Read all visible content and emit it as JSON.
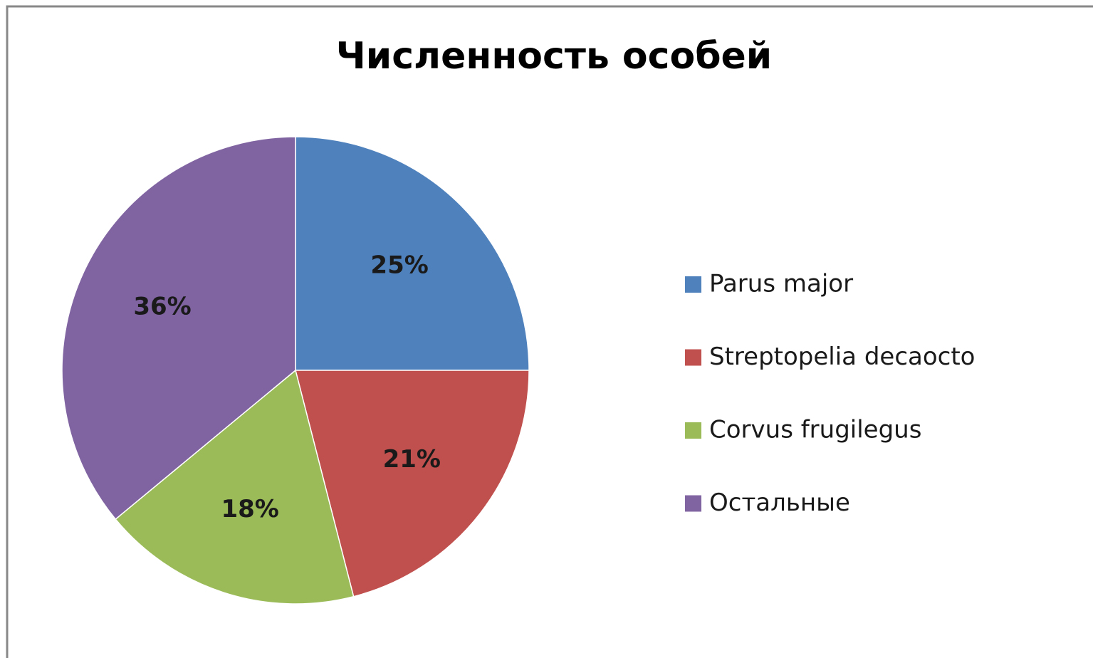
{
  "chart_data": {
    "type": "pie",
    "title": "Численность особей",
    "categories": [
      "Parus major",
      "Streptopelia decaocto",
      "Corvus frugilegus",
      "Остальные"
    ],
    "values": [
      25,
      21,
      18,
      36
    ],
    "value_labels": [
      "25%",
      "21%",
      "18%",
      "36%"
    ],
    "colors": [
      "#4f81bd",
      "#c0504d",
      "#9bbb59",
      "#8064a2"
    ],
    "legend": "right"
  }
}
